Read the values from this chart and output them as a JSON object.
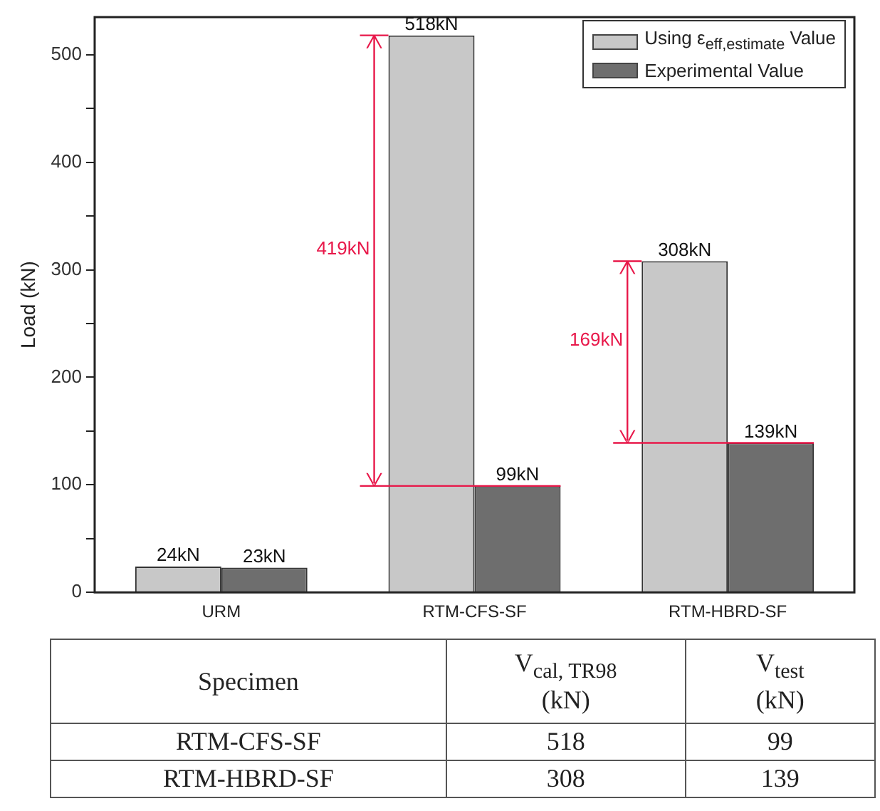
{
  "chart_data": {
    "type": "bar",
    "ylabel": "Load (kN)",
    "categories": [
      "URM",
      "RTM-CFS-SF",
      "RTM-HBRD-SF"
    ],
    "series": [
      {
        "name": "Using ε$_{eff,estimate}$ Value",
        "color": "#c8c8c8",
        "values": [
          24,
          518,
          308
        ],
        "value_labels": [
          "24kN",
          "518kN",
          "308kN"
        ]
      },
      {
        "name": "Experimental Value",
        "color": "#6e6e6e",
        "values": [
          23,
          99,
          139
        ],
        "value_labels": [
          "23kN",
          "99kN",
          "139kN"
        ]
      }
    ],
    "ylim": [
      0,
      535
    ],
    "yticks": [
      0,
      {
        "value": 50,
        "label": null
      },
      100,
      {
        "value": 150,
        "label": null
      },
      200,
      {
        "value": 250,
        "label": null
      },
      300,
      {
        "value": 350,
        "label": null
      },
      400,
      {
        "value": 450,
        "label": null
      },
      500
    ],
    "grid": false,
    "legend": "top right",
    "annotations": [
      "419kN",
      "169kN",
      "Specimen",
      "V$_{cal, TR98}$ (kN)",
      "V$_{test}$ (kN)",
      "RTM-CFS-SF",
      "518",
      "99",
      "RTM-HBRD-SF",
      "308",
      "139"
    ]
  }
}
